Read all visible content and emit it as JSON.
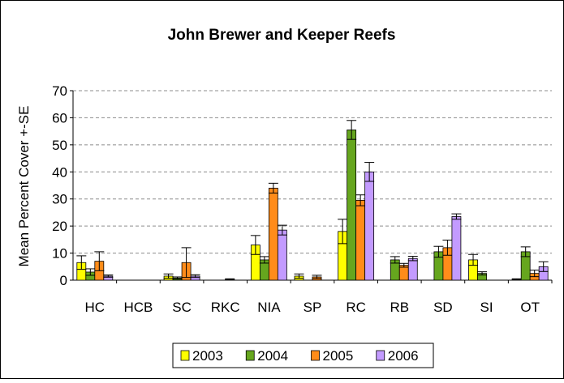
{
  "chart_data": {
    "type": "bar",
    "title": "John Brewer and Keeper Reefs",
    "xlabel": "",
    "ylabel": "Mean Percent Cover +-SE",
    "ylim": [
      0,
      70
    ],
    "yticks": [
      0,
      10,
      20,
      30,
      40,
      50,
      60,
      70
    ],
    "grid": true,
    "legend_position": "bottom",
    "categories": [
      "HC",
      "HCB",
      "SC",
      "RKC",
      "NIA",
      "SP",
      "RC",
      "RB",
      "SD",
      "SI",
      "OT"
    ],
    "series": [
      {
        "name": "2003",
        "color": "#ffff00",
        "values": [
          6.5,
          0,
          1.5,
          0,
          13,
          1.5,
          18,
          0,
          0,
          7.5,
          0.3
        ],
        "errors": [
          2.5,
          0,
          0.8,
          0,
          3.5,
          0.8,
          4.5,
          0,
          0,
          2.0,
          0.2
        ]
      },
      {
        "name": "2004",
        "color": "#66a61e",
        "values": [
          3,
          0,
          0.8,
          0,
          7.5,
          0,
          55.5,
          7.5,
          10.5,
          2.5,
          10.5
        ],
        "errors": [
          1.2,
          0,
          0.4,
          0,
          1.2,
          0,
          3.5,
          1.2,
          2.0,
          0.6,
          1.8
        ]
      },
      {
        "name": "2005",
        "color": "#ff8c1a",
        "values": [
          7,
          0,
          6.5,
          0.3,
          34,
          1.2,
          29.5,
          5.5,
          12,
          0,
          2.5
        ],
        "errors": [
          3.5,
          0,
          5.5,
          0.2,
          1.8,
          0.6,
          2.0,
          0.7,
          2.8,
          0,
          1.2
        ]
      },
      {
        "name": "2006",
        "color": "#c39bff",
        "values": [
          1.5,
          0,
          1.5,
          0,
          18.5,
          0,
          40,
          8,
          23.5,
          0,
          5
        ],
        "errors": [
          0.4,
          0,
          0.5,
          0,
          1.8,
          0,
          3.5,
          0.8,
          1.0,
          0,
          1.8
        ]
      }
    ]
  }
}
